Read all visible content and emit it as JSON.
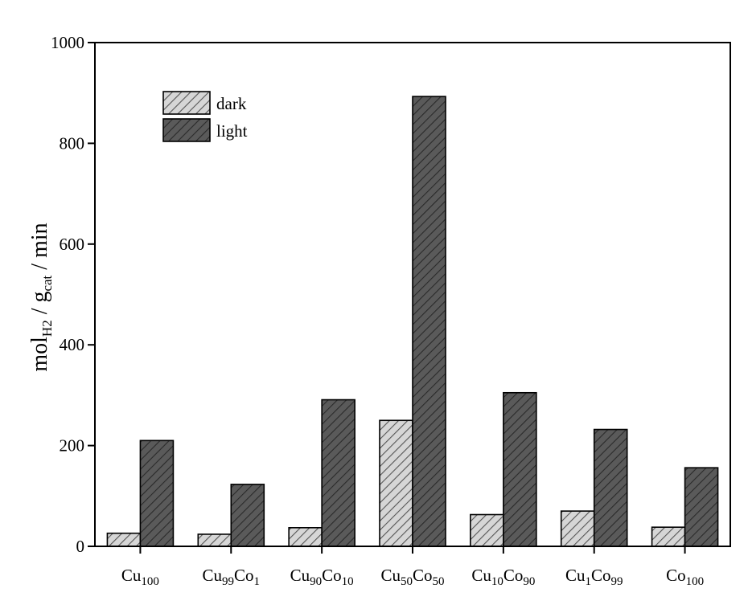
{
  "chart_data": {
    "type": "bar",
    "title": "",
    "xlabel": "",
    "ylabel": {
      "base": "mol",
      "sub1": "H2",
      "sep": " / g",
      "sub2": "cat",
      "tail": " / min"
    },
    "ylim": [
      0,
      1000
    ],
    "yticks": [
      0,
      200,
      400,
      600,
      800,
      1000
    ],
    "categories": [
      {
        "base1": "Cu",
        "sub1": "100",
        "base2": "",
        "sub2": ""
      },
      {
        "base1": "Cu",
        "sub1": "99",
        "base2": "Co",
        "sub2": "1"
      },
      {
        "base1": "Cu",
        "sub1": "90",
        "base2": "Co",
        "sub2": "10"
      },
      {
        "base1": "Cu",
        "sub1": "50",
        "base2": "Co",
        "sub2": "50"
      },
      {
        "base1": "Cu",
        "sub1": "10",
        "base2": "Co",
        "sub2": "90"
      },
      {
        "base1": "Cu",
        "sub1": "1",
        "base2": "Co",
        "sub2": "99"
      },
      {
        "base1": "Co",
        "sub1": "100",
        "base2": "",
        "sub2": ""
      }
    ],
    "series": [
      {
        "name": "dark",
        "fill": "#d6d6d6",
        "hatch": "#555555",
        "values": [
          26,
          24,
          37,
          250,
          63,
          70,
          38
        ]
      },
      {
        "name": "light",
        "fill": "#555555",
        "hatch": "#2a2a2a",
        "values": [
          210,
          123,
          291,
          893,
          305,
          232,
          156
        ]
      }
    ],
    "legend_position": "top-left",
    "grid": false
  }
}
